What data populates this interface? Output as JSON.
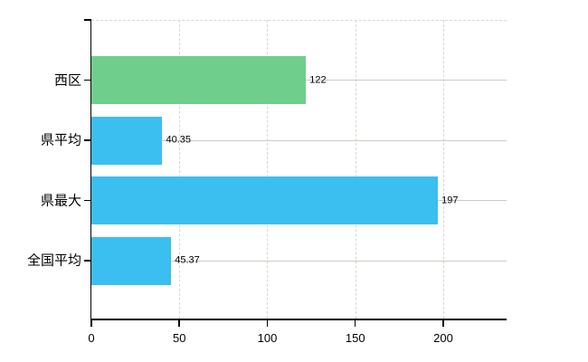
{
  "chart_data": {
    "type": "bar",
    "orientation": "horizontal",
    "title": "",
    "xlabel": "",
    "ylabel": "",
    "categories": [
      "西区",
      "県平均",
      "県最大",
      "全国平均"
    ],
    "values": [
      122,
      40.35,
      197,
      45.37
    ],
    "value_labels": [
      "122",
      "40.35",
      "197",
      "45.37"
    ],
    "bar_colors": [
      "#6fce8b",
      "#3bbef0",
      "#3bbef0",
      "#3bbef0"
    ],
    "x_ticks": [
      0,
      50,
      100,
      150,
      200
    ],
    "x_tick_labels": [
      "0",
      "50",
      "100",
      "150",
      "200"
    ],
    "xlim": [
      0,
      236
    ],
    "grid": true,
    "legend": false
  },
  "colors": {
    "axis": "#000000",
    "grid_solid": "#c7cdc1",
    "grid_dashed": "#d5d9d0",
    "bar_green": "#6fce8b",
    "bar_blue": "#3bbef0",
    "text": "#000000",
    "background": "#ffffff"
  }
}
